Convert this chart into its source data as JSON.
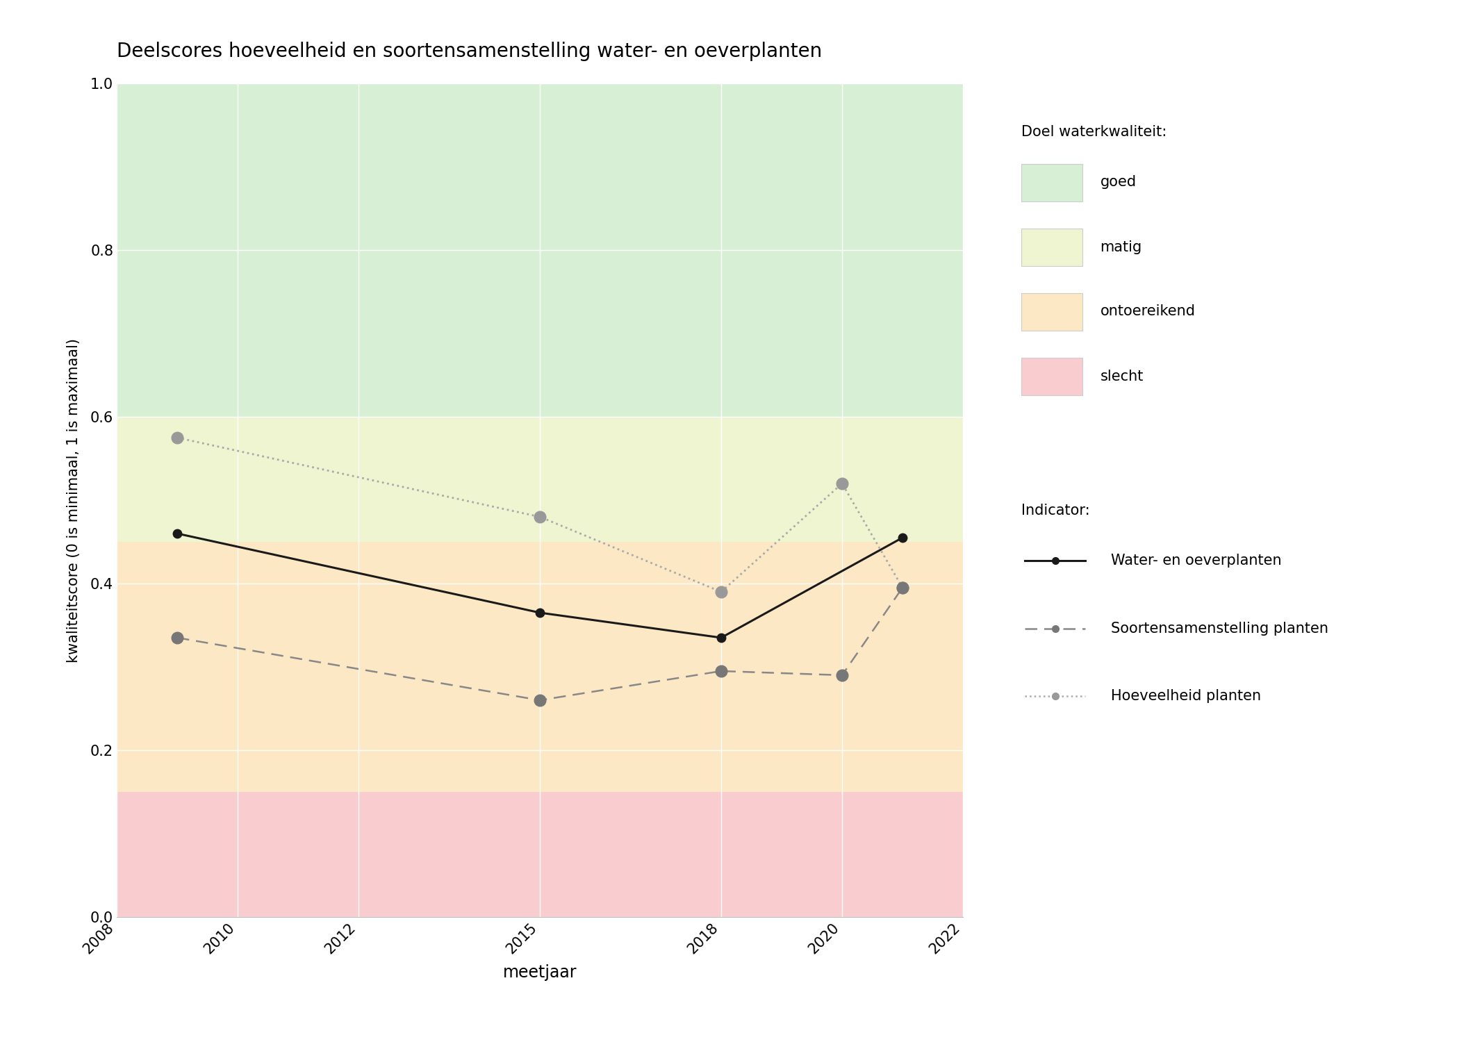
{
  "title": "Deelscores hoeveelheid en soortensamenstelling water- en oeverplanten",
  "xlabel": "meetjaar",
  "ylabel": "kwaliteitscore (0 is minimaal, 1 is maximaal)",
  "xlim": [
    2008,
    2022
  ],
  "ylim": [
    0.0,
    1.0
  ],
  "xticks": [
    2008,
    2010,
    2012,
    2015,
    2018,
    2020,
    2022
  ],
  "yticks": [
    0.0,
    0.2,
    0.4,
    0.6,
    0.8,
    1.0
  ],
  "bg_color": "#ffffff",
  "plot_bg_color": "#ffffff",
  "zones": {
    "goed": {
      "ymin": 0.6,
      "ymax": 1.0,
      "color": "#d6efd5"
    },
    "matig": {
      "ymin": 0.45,
      "ymax": 0.6,
      "color": "#eef5d0"
    },
    "ontoereikend": {
      "ymin": 0.15,
      "ymax": 0.45,
      "color": "#fce8c4"
    },
    "slecht": {
      "ymin": 0.0,
      "ymax": 0.15,
      "color": "#f9cdd0"
    }
  },
  "series": {
    "water_oever": {
      "years": [
        2009,
        2015,
        2018,
        2021
      ],
      "values": [
        0.46,
        0.365,
        0.335,
        0.455
      ],
      "color": "#1a1a1a",
      "linestyle": "solid",
      "linewidth": 2.2,
      "marker": "o",
      "markersize": 9,
      "label": "Water- en oeverplanten",
      "zorder": 5
    },
    "soortensamenstelling": {
      "years": [
        2009,
        2015,
        2018,
        2020,
        2021
      ],
      "values": [
        0.335,
        0.26,
        0.295,
        0.29,
        0.395
      ],
      "color": "#888888",
      "linestyle": "dashed",
      "linewidth": 1.8,
      "marker": "o",
      "markersize": 12,
      "label": "Soortensamenstelling planten",
      "zorder": 4
    },
    "hoeveelheid": {
      "years": [
        2009,
        2015,
        2018,
        2020,
        2021
      ],
      "values": [
        0.575,
        0.48,
        0.39,
        0.52,
        0.395
      ],
      "color": "#aaaaaa",
      "linestyle": "dotted",
      "linewidth": 2.0,
      "marker": "o",
      "markersize": 12,
      "label": "Hoeveelheid planten",
      "zorder": 4
    }
  },
  "doel_title": "Doel waterkwaliteit:",
  "doel_items": [
    {
      "label": "goed",
      "color": "#d6efd5"
    },
    {
      "label": "matig",
      "color": "#eef5d0"
    },
    {
      "label": "ontoereikend",
      "color": "#fce8c4"
    },
    {
      "label": "slecht",
      "color": "#f9cdd0"
    }
  ],
  "indicator_title": "Indicator:",
  "figsize": [
    21.0,
    15.0
  ],
  "dpi": 100
}
